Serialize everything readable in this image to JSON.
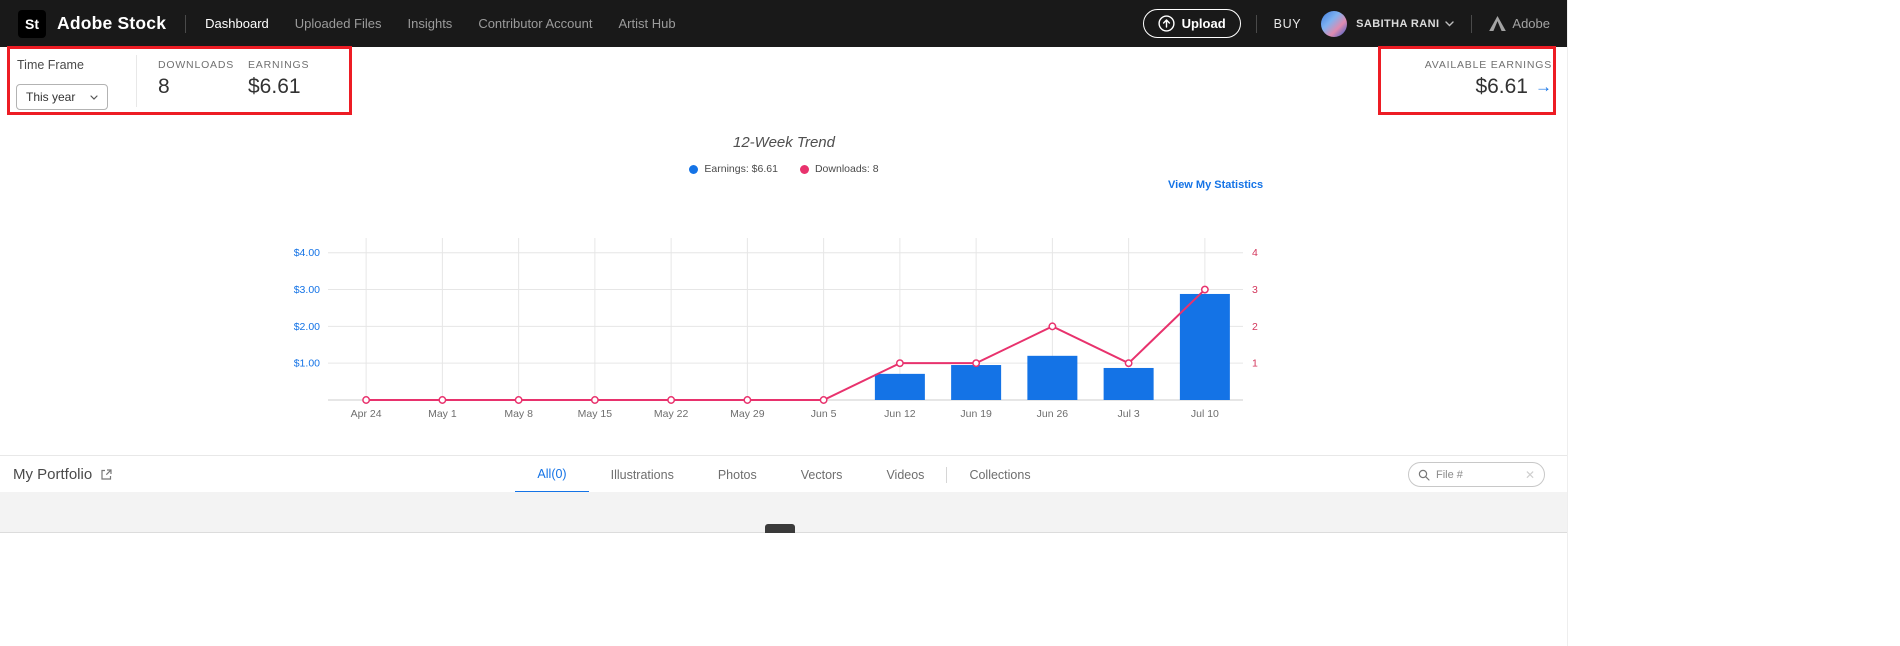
{
  "topnav": {
    "logo_text": "St",
    "brand": "Adobe Stock",
    "items": [
      {
        "label": "Dashboard",
        "active": true
      },
      {
        "label": "Uploaded Files",
        "active": false
      },
      {
        "label": "Insights",
        "active": false
      },
      {
        "label": "Contributor Account",
        "active": false
      },
      {
        "label": "Artist Hub",
        "active": false
      }
    ],
    "upload_label": "Upload",
    "buy_label": "BUY",
    "user_name": "SABITHA RANI",
    "adobe_label": "Adobe"
  },
  "stats": {
    "time_frame_label": "Time Frame",
    "time_frame_value": "This year",
    "downloads_label": "DOWNLOADS",
    "downloads_value": "8",
    "earnings_label": "EARNINGS",
    "earnings_value": "$6.61",
    "available_label": "AVAILABLE EARNINGS",
    "available_value": "$6.61",
    "available_arrow": "→"
  },
  "trend": {
    "title": "12-Week Trend",
    "legend": [
      {
        "label": "Earnings: $6.61",
        "color": "#1473e6"
      },
      {
        "label": "Downloads: 8",
        "color": "#e8326d"
      }
    ],
    "link_label": "View My Statistics"
  },
  "chart_data": {
    "type": "bar",
    "subtype": "combo bar+line, dual axis",
    "title": "12-Week Trend",
    "categories": [
      "Apr 24",
      "May 1",
      "May 8",
      "May 15",
      "May 22",
      "May 29",
      "Jun 5",
      "Jun 12",
      "Jun 19",
      "Jun 26",
      "Jul 3",
      "Jul 10"
    ],
    "series": [
      {
        "name": "Earnings",
        "type": "bar",
        "axis": "left",
        "color": "#1473e6",
        "values": [
          0,
          0,
          0,
          0,
          0,
          0,
          0,
          0.71,
          0.95,
          1.2,
          0.87,
          2.88
        ]
      },
      {
        "name": "Downloads",
        "type": "line",
        "axis": "right",
        "color": "#e8326d",
        "values": [
          0,
          0,
          0,
          0,
          0,
          0,
          0,
          1,
          1,
          2,
          1,
          3
        ]
      }
    ],
    "left_axis": {
      "ticks": [
        "$1.00",
        "$2.00",
        "$3.00",
        "$4.00"
      ],
      "tick_values": [
        1,
        2,
        3,
        4
      ],
      "max": 4.4,
      "color": "#1473e6"
    },
    "right_axis": {
      "ticks": [
        "1",
        "2",
        "3",
        "4"
      ],
      "tick_values": [
        1,
        2,
        3,
        4
      ],
      "max": 4.4,
      "color": "#d3365c"
    },
    "grid": true,
    "legend_position": "top-center"
  },
  "portfolio": {
    "title": "My Portfolio",
    "tabs": [
      {
        "label": "All(0)",
        "active": true
      },
      {
        "label": "Illustrations",
        "active": false
      },
      {
        "label": "Photos",
        "active": false
      },
      {
        "label": "Vectors",
        "active": false
      },
      {
        "label": "Videos",
        "active": false
      },
      {
        "label": "Collections",
        "active": false
      }
    ],
    "search_placeholder": "File #",
    "clear_icon": "✕"
  },
  "colors": {
    "navbar_bg": "#191919",
    "accent_blue": "#1473e6",
    "line_pink": "#e8326d",
    "highlight_red": "#ed1c24"
  }
}
